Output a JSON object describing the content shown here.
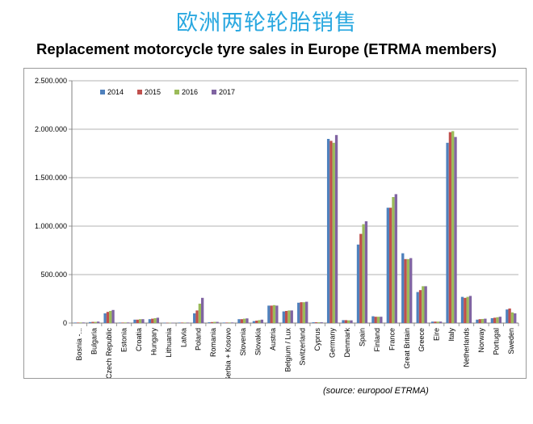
{
  "title_cn": "欧洲两轮轮胎销售",
  "title_en": "Replacement motorcycle tyre sales in Europe (ETRMA members)",
  "source": "(source: europool ETRMA)",
  "chart_data": {
    "type": "bar",
    "ylim": [
      0,
      2500000
    ],
    "y_ticks": [
      "0",
      "500.000",
      "1.000.000",
      "1.500.000",
      "2.000.000",
      "2.500.000"
    ],
    "grid": "horizontal",
    "legend_position": "top-left",
    "categories": [
      "Bosnia -...",
      "Bulgaria",
      "Czech Republic",
      "Estonia",
      "Croatia",
      "Hungary",
      "Lithuania",
      "Latvia",
      "Poland",
      "Romania",
      "Serbia + Kosovo",
      "Slovenia",
      "Slovakia",
      "Austria",
      "Belgium / Lux",
      "Switzerland",
      "Cyprus",
      "Germany",
      "Denmark",
      "Spain",
      "Finland",
      "France",
      "Great Britain",
      "Greece",
      "Eire",
      "Italy",
      "Netherlands",
      "Norway",
      "Portugal",
      "Sweden"
    ],
    "series": [
      {
        "name": "2014",
        "color": "#4f81bd",
        "values": [
          5000,
          10000,
          100000,
          5000,
          35000,
          40000,
          3000,
          5000,
          100000,
          8000,
          5000,
          40000,
          20000,
          180000,
          120000,
          210000,
          8000,
          1900000,
          30000,
          810000,
          70000,
          1190000,
          720000,
          320000,
          15000,
          1860000,
          270000,
          35000,
          50000,
          140000
        ]
      },
      {
        "name": "2015",
        "color": "#c0504d",
        "values": [
          5000,
          12000,
          115000,
          5000,
          35000,
          45000,
          3000,
          5000,
          130000,
          10000,
          5000,
          40000,
          25000,
          180000,
          125000,
          215000,
          8000,
          1880000,
          30000,
          920000,
          65000,
          1190000,
          660000,
          340000,
          15000,
          1970000,
          260000,
          40000,
          55000,
          150000
        ]
      },
      {
        "name": "2016",
        "color": "#9bbb59",
        "values": [
          6000,
          12000,
          125000,
          6000,
          40000,
          50000,
          3000,
          5000,
          200000,
          12000,
          6000,
          45000,
          30000,
          185000,
          130000,
          215000,
          8000,
          1860000,
          28000,
          1020000,
          65000,
          1300000,
          660000,
          380000,
          15000,
          1980000,
          270000,
          42000,
          60000,
          110000
        ]
      },
      {
        "name": "2017",
        "color": "#8064a2",
        "values": [
          6000,
          15000,
          135000,
          6000,
          40000,
          55000,
          3000,
          5000,
          260000,
          12000,
          6000,
          48000,
          35000,
          180000,
          130000,
          220000,
          8000,
          1940000,
          28000,
          1050000,
          65000,
          1330000,
          670000,
          380000,
          15000,
          1920000,
          280000,
          45000,
          65000,
          100000
        ]
      }
    ]
  }
}
